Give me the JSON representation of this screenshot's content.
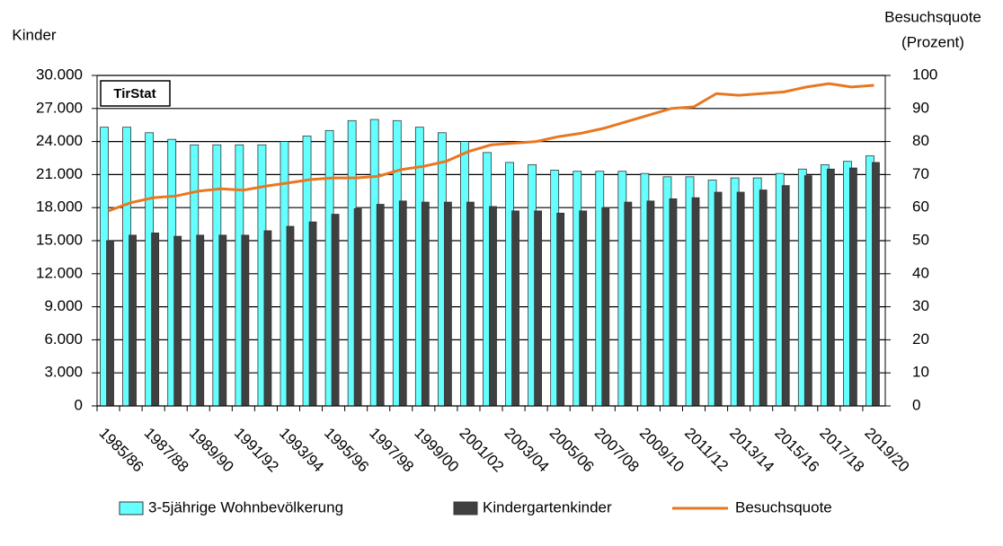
{
  "chart_data": {
    "type": "bar_line",
    "y_label": "Kinder",
    "y2_label": [
      "Besuchsquote",
      "(Prozent)"
    ],
    "annotation": "TirStat",
    "categories": [
      "1985/86",
      null,
      "1987/88",
      null,
      "1989/90",
      null,
      "1991/92",
      null,
      "1993/94",
      null,
      "1995/96",
      null,
      "1997/98",
      null,
      "1999/00",
      null,
      "2001/02",
      null,
      "2003/04",
      null,
      "2005/06",
      null,
      "2007/08",
      null,
      "2009/10",
      null,
      "2011/12",
      null,
      "2013/14",
      null,
      "2015/16",
      null,
      "2017/18",
      null,
      "2019/20"
    ],
    "series": [
      {
        "name": "3-5jährige Wohnbevölkerung",
        "type": "bar",
        "color": "#66ffff",
        "values": [
          25300,
          25300,
          24800,
          24200,
          23700,
          23700,
          23700,
          23700,
          24000,
          24500,
          25000,
          25900,
          26000,
          25900,
          25300,
          24800,
          24000,
          23000,
          22100,
          21900,
          21400,
          21300,
          21300,
          21300,
          21100,
          20800,
          20800,
          20500,
          20700,
          20700,
          21100,
          21500,
          21900,
          22200,
          22700
        ]
      },
      {
        "name": "Kindergartenkinder",
        "type": "bar",
        "color": "#404040",
        "values": [
          15000,
          15500,
          15700,
          15400,
          15500,
          15500,
          15500,
          15900,
          16300,
          16700,
          17400,
          17900,
          18300,
          18600,
          18500,
          18500,
          18500,
          18100,
          17700,
          17700,
          17500,
          17700,
          18000,
          18500,
          18600,
          18800,
          18900,
          19400,
          19400,
          19600,
          20000,
          20900,
          21500,
          21600,
          22100
        ]
      },
      {
        "name": "Besuchsquote",
        "type": "line",
        "axis": "y2",
        "color": "#e87722",
        "values": [
          59,
          61.5,
          63,
          63.5,
          65,
          65.7,
          65.3,
          66.5,
          67.5,
          68.5,
          69,
          69,
          69.5,
          71.5,
          72.5,
          74,
          77,
          79,
          79.5,
          80,
          81.5,
          82.5,
          84,
          86,
          88,
          90,
          90.5,
          94.5,
          94,
          94.5,
          95,
          96.5,
          97.5,
          96.5,
          97
        ]
      }
    ],
    "ylim": [
      0,
      30000
    ],
    "yticks": [
      0,
      {
        "value": 3000,
        "label": "3.000"
      },
      {
        "value": 6000,
        "label": "6.000"
      },
      {
        "value": 9000,
        "label": "9.000"
      },
      {
        "value": 12000,
        "label": "12.000"
      },
      {
        "value": 15000,
        "label": "15.000"
      },
      {
        "value": 18000,
        "label": "18.000"
      },
      {
        "value": 21000,
        "label": "21.000"
      },
      {
        "value": 24000,
        "label": "24.000"
      },
      {
        "value": 27000,
        "label": "27.000"
      },
      {
        "value": 30000,
        "label": "30.000"
      }
    ],
    "y2lim": [
      0,
      100
    ],
    "y2ticks": [
      0,
      10,
      20,
      30,
      40,
      50,
      60,
      70,
      80,
      90,
      100
    ],
    "grid": true,
    "legend": "bottom"
  }
}
